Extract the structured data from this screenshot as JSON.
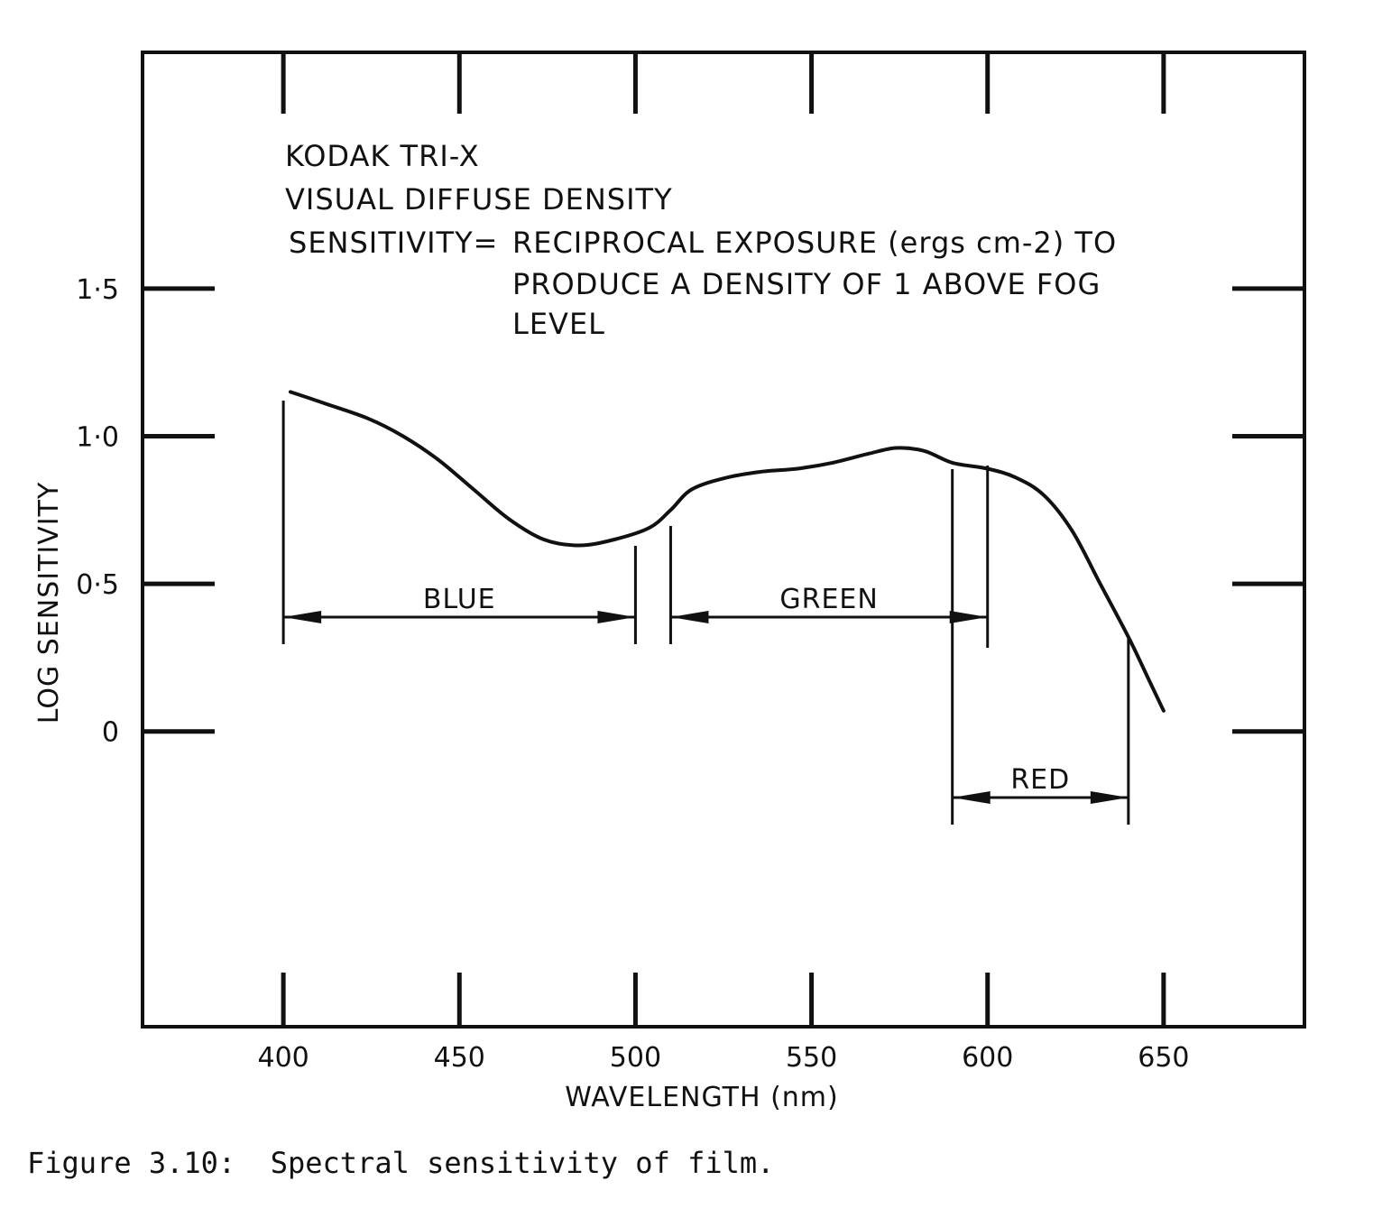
{
  "chart_data": {
    "type": "line",
    "annotation": {
      "line1": "KODAK TRI-X",
      "line2": "VISUAL DIFFUSE DENSITY",
      "line3_left": "SENSITIVITY=",
      "line3_right": "RECIPROCAL EXPOSURE (ergs cm-2) TO",
      "line4": "PRODUCE A DENSITY OF 1 ABOVE FOG",
      "line5": "LEVEL"
    },
    "xlabel": "WAVELENGTH (nm)",
    "ylabel": "LOG SENSITIVITY",
    "x_ticks": [
      "400",
      "450",
      "500",
      "550",
      "600",
      "650"
    ],
    "y_ticks": [
      "0",
      "0·5",
      "1·0",
      "1·5"
    ],
    "xlim": [
      360,
      690
    ],
    "ylim": [
      -1.0,
      2.3
    ],
    "grid": false,
    "series": [
      {
        "x": [
          402,
          412,
          424,
          434,
          444,
          454,
          464,
          474,
          484,
          494,
          504,
          510,
          516,
          526,
          536,
          546,
          556,
          566,
          574,
          582,
          590,
          600,
          608,
          616,
          624,
          632,
          640,
          646,
          650
        ],
        "y": [
          1.15,
          1.11,
          1.06,
          1.0,
          0.92,
          0.82,
          0.72,
          0.65,
          0.63,
          0.65,
          0.69,
          0.75,
          0.82,
          0.86,
          0.88,
          0.89,
          0.91,
          0.94,
          0.96,
          0.95,
          0.91,
          0.89,
          0.86,
          0.8,
          0.68,
          0.5,
          0.32,
          0.17,
          0.07
        ]
      }
    ],
    "bands": [
      {
        "label": "BLUE",
        "start": 400,
        "end": 500
      },
      {
        "label": "GREEN",
        "start": 510,
        "end": 600
      },
      {
        "label": "RED",
        "start": 590,
        "end": 640
      }
    ]
  },
  "caption": "Figure 3.10:  Spectral sensitivity of film."
}
